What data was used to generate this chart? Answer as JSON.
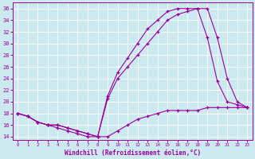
{
  "xlabel": "Windchill (Refroidissement éolien,°C)",
  "xlim": [
    -0.5,
    23.5
  ],
  "ylim": [
    13.5,
    37
  ],
  "yticks": [
    14,
    16,
    18,
    20,
    22,
    24,
    26,
    28,
    30,
    32,
    34,
    36
  ],
  "xticks": [
    0,
    1,
    2,
    3,
    4,
    5,
    6,
    7,
    8,
    9,
    10,
    11,
    12,
    13,
    14,
    15,
    16,
    17,
    18,
    19,
    20,
    21,
    22,
    23
  ],
  "bg_color": "#cde9f0",
  "line_color": "#990099",
  "grid_color": "#ffffff",
  "line1_x": [
    0,
    1,
    2,
    3,
    4,
    5,
    6,
    7,
    8,
    9,
    10,
    11,
    12,
    13,
    14,
    15,
    16,
    17,
    18,
    19,
    20,
    21,
    22,
    23
  ],
  "line1_y": [
    18,
    17.5,
    16.5,
    16,
    16,
    15.5,
    15,
    14.5,
    14,
    14,
    15,
    16,
    17,
    17.5,
    18,
    18.5,
    18.5,
    18.5,
    18.5,
    19,
    19,
    19,
    19,
    19
  ],
  "line2_x": [
    0,
    1,
    2,
    3,
    4,
    5,
    6,
    7,
    8,
    9,
    10,
    11,
    12,
    13,
    14,
    15,
    16,
    17,
    18,
    19,
    20,
    21,
    22,
    23
  ],
  "line2_y": [
    18,
    17.5,
    16.5,
    16,
    16,
    15.5,
    15,
    14.5,
    14,
    21,
    25,
    27.5,
    30,
    32.5,
    34,
    35.5,
    36,
    36,
    36,
    36,
    31,
    24,
    20,
    19
  ],
  "line3_x": [
    0,
    1,
    2,
    3,
    4,
    5,
    6,
    7,
    8,
    9,
    10,
    11,
    12,
    13,
    14,
    15,
    16,
    17,
    18,
    19,
    20,
    21,
    22,
    23
  ],
  "line3_y": [
    18,
    17.5,
    16.5,
    16,
    15.5,
    15,
    14.5,
    14,
    14,
    20.5,
    24,
    26,
    28,
    30,
    32,
    34,
    35,
    35.5,
    36,
    31,
    23.5,
    20,
    19.5,
    19
  ]
}
